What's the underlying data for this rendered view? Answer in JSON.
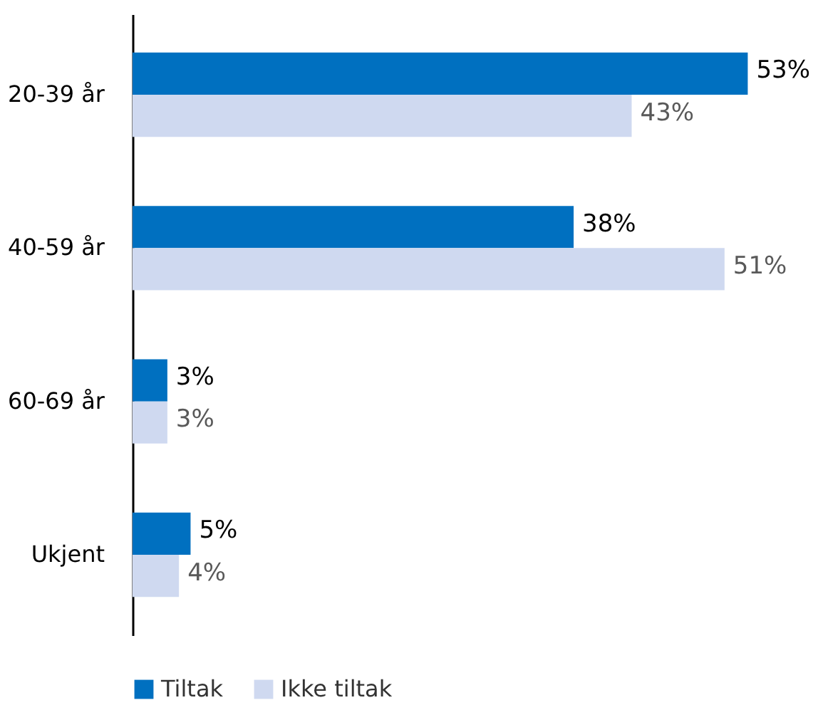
{
  "chart_data": {
    "type": "bar",
    "orientation": "horizontal",
    "categories": [
      "20-39 år",
      "40-59 år",
      "60-69 år",
      "Ukjent"
    ],
    "series": [
      {
        "name": "Tiltak",
        "color": "#0070c0",
        "values": [
          53,
          38,
          3,
          5
        ],
        "value_labels": [
          "53%",
          "38%",
          "3%",
          "5%"
        ]
      },
      {
        "name": "Ikke tiltak",
        "color": "#cfd9f0",
        "values": [
          43,
          51,
          3,
          4
        ],
        "value_labels": [
          "43%",
          "51%",
          "3%",
          "4%"
        ]
      }
    ],
    "legend": "bottom"
  }
}
